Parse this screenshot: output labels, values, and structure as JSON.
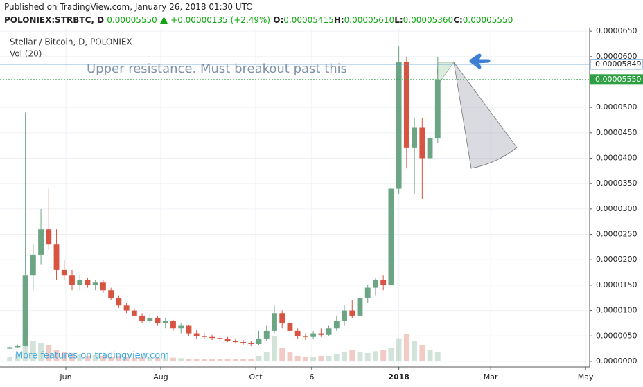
{
  "header": {
    "published": "Published on TradingView.com, January 26, 2018 01:30 UTC",
    "symbol": "POLONIEX:STRBTC, D",
    "price": "0.00005550",
    "change": "+0.00000135 (+2.49%)",
    "ohlc": [
      {
        "label": "O:",
        "value": "0.00005415"
      },
      {
        "label": "H:",
        "value": "0.00005610"
      },
      {
        "label": "L:",
        "value": "0.00005360"
      },
      {
        "label": "C:",
        "value": "0.00005550"
      }
    ]
  },
  "chart_data": {
    "type": "candlestick",
    "legend": "Stellar / Bitcoin, D, POLONIEX",
    "volume_label": "Vol (20)",
    "annotation": "Upper resistance. Must breakout past this",
    "watermark": "More features on tradingview.com",
    "up_color": "#6ba583",
    "down_color": "#d75442",
    "x": [
      -36,
      -31,
      -26,
      -21,
      -16,
      -11,
      -6,
      -1,
      4,
      9,
      14,
      19,
      24,
      29,
      34,
      39,
      44,
      49,
      54,
      59,
      64,
      69,
      74,
      79,
      84,
      89,
      94,
      99,
      104,
      109,
      114,
      119,
      124,
      129,
      134,
      139,
      144,
      149,
      154,
      159,
      164,
      169,
      174,
      179,
      184,
      189,
      194,
      199,
      204,
      209,
      214,
      219,
      224,
      229,
      234,
      239
    ],
    "open": [
      2.5e-06,
      2.8e-06,
      3e-06,
      1.7e-05,
      2.1e-05,
      2.6e-05,
      2.3e-05,
      1.8e-05,
      1.7e-05,
      1.5e-05,
      1.6e-05,
      1.5e-05,
      1.55e-05,
      1.4e-05,
      1.25e-05,
      1.1e-05,
      1e-05,
      9e-06,
      8e-06,
      8.5e-06,
      7.5e-06,
      8e-06,
      6.5e-06,
      7e-06,
      5.5e-06,
      5e-06,
      4.8e-06,
      4.6e-06,
      4.5e-06,
      4e-06,
      3.8e-06,
      3.6e-06,
      3.4e-06,
      4.5e-06,
      6e-06,
      9.5e-06,
      7.5e-06,
      6e-06,
      5e-06,
      4.8e-06,
      5.5e-06,
      5.2e-06,
      6.5e-06,
      8e-06,
      1e-05,
      9e-06,
      1.25e-05,
      1.45e-05,
      1.6e-05,
      1.5e-05,
      3.4e-05,
      5.9e-05,
      4.2e-05,
      4.6e-05,
      4e-05,
      4.4e-05
    ],
    "high": [
      2.9e-06,
      3.3e-06,
      4.9e-05,
      2.3e-05,
      3e-05,
      3.4e-05,
      2.6e-05,
      2e-05,
      1.8e-05,
      1.7e-05,
      1.65e-05,
      1.6e-05,
      1.6e-05,
      1.45e-05,
      1.3e-05,
      1.15e-05,
      1.05e-05,
      9.5e-06,
      9.5e-06,
      9e-06,
      8.5e-06,
      8.2e-06,
      7.5e-06,
      7.2e-06,
      6.2e-06,
      5.6e-06,
      5.2e-06,
      5e-06,
      4.8e-06,
      4.5e-06,
      4.2e-06,
      4e-06,
      6e-06,
      7e-06,
      1.1e-05,
      1e-05,
      8e-06,
      6.5e-06,
      5.5e-06,
      6e-06,
      6.5e-06,
      7e-06,
      9e-06,
      1.1e-05,
      1.2e-05,
      1.3e-05,
      1.5e-05,
      1.65e-05,
      1.7e-05,
      3.5e-05,
      6.2e-05,
      6e-05,
      4.8e-05,
      4.8e-05,
      4.5e-05,
      6e-05
    ],
    "low": [
      2.4e-06,
      2.6e-06,
      2.9e-06,
      1.4e-05,
      1.9e-05,
      2.2e-05,
      1.6e-05,
      1.6e-05,
      1.4e-05,
      1.4e-05,
      1.45e-05,
      1.4e-05,
      1.35e-05,
      1.2e-05,
      1.05e-05,
      9.5e-06,
      8.8e-06,
      7.5e-06,
      7.5e-06,
      7e-06,
      6.5e-06,
      6e-06,
      5.5e-06,
      5e-06,
      4.5e-06,
      4.5e-06,
      4.2e-06,
      4e-06,
      3.8e-06,
      3.5e-06,
      3.3e-06,
      3e-06,
      3.2e-06,
      4e-06,
      5.5e-06,
      6.5e-06,
      5.5e-06,
      4.5e-06,
      4.2e-06,
      4.5e-06,
      4.8e-06,
      5e-06,
      6e-06,
      7e-06,
      8.5e-06,
      8.8e-06,
      1.15e-05,
      1.3e-05,
      1.4e-05,
      1.45e-05,
      3.3e-05,
      3.8e-05,
      3.3e-05,
      3.2e-05,
      3.8e-05,
      4.3e-05
    ],
    "close": [
      2.8e-06,
      3e-06,
      1.7e-05,
      2.1e-05,
      2.6e-05,
      2.3e-05,
      1.8e-05,
      1.7e-05,
      1.5e-05,
      1.6e-05,
      1.5e-05,
      1.55e-05,
      1.4e-05,
      1.25e-05,
      1.1e-05,
      1e-05,
      9e-06,
      8e-06,
      8.5e-06,
      7.5e-06,
      8e-06,
      6.5e-06,
      7e-06,
      5.5e-06,
      5e-06,
      4.8e-06,
      4.6e-06,
      4.5e-06,
      4e-06,
      3.8e-06,
      3.6e-06,
      3.4e-06,
      4.5e-06,
      6e-06,
      9.5e-06,
      7.5e-06,
      6e-06,
      5e-06,
      4.8e-06,
      5.5e-06,
      5.2e-06,
      6.5e-06,
      8e-06,
      1e-05,
      9e-06,
      1.25e-05,
      1.45e-05,
      1.6e-05,
      1.5e-05,
      3.4e-05,
      5.9e-05,
      4.2e-05,
      4.6e-05,
      4e-05,
      4.4e-05,
      5.55e-05
    ],
    "volume": [
      10,
      15,
      60,
      45,
      40,
      35,
      25,
      20,
      18,
      15,
      12,
      14,
      12,
      10,
      12,
      10,
      8,
      9,
      8,
      8,
      7,
      8,
      7,
      6,
      6,
      5,
      5,
      5,
      5,
      5,
      5,
      5,
      12,
      20,
      55,
      30,
      20,
      12,
      10,
      10,
      12,
      12,
      15,
      20,
      25,
      20,
      18,
      22,
      25,
      30,
      50,
      60,
      45,
      35,
      25,
      20
    ],
    "xlim": [
      -42.3,
      336.6
    ],
    "xticks": [
      {
        "value": 0,
        "label": "Jun"
      },
      {
        "value": 61,
        "label": "Aug"
      },
      {
        "value": 122,
        "label": "Oct"
      },
      {
        "value": 158,
        "label": "6"
      },
      {
        "value": 214,
        "label": "2018"
      },
      {
        "value": 273,
        "label": "Mar"
      },
      {
        "value": 334,
        "label": "May"
      }
    ],
    "ylim": [
      -1.1e-06,
      6.57e-05
    ],
    "yticks": [
      {
        "value": 6.5e-05,
        "label": "0.0000650"
      },
      {
        "value": 6e-05,
        "label": "0.0000600"
      },
      {
        "value": 5.5e-05,
        "label": "0.0000550"
      },
      {
        "value": 5e-05,
        "label": "0.0000500"
      },
      {
        "value": 4.5e-05,
        "label": "0.0000450"
      },
      {
        "value": 4e-05,
        "label": "0.0000400"
      },
      {
        "value": 3.5e-05,
        "label": "0.0000350"
      },
      {
        "value": 3e-05,
        "label": "0.0000300"
      },
      {
        "value": 2.5e-05,
        "label": "0.0000250"
      },
      {
        "value": 2e-05,
        "label": "0.0000200"
      },
      {
        "value": 1.5e-05,
        "label": "0.0000150"
      },
      {
        "value": 1e-05,
        "label": "0.0000100"
      },
      {
        "value": 5e-06,
        "label": "0.0000050"
      },
      {
        "value": 0,
        "label": "0.0000000"
      }
    ],
    "grid": true,
    "resistance": {
      "value": 5.849e-05,
      "label": "0.00005849",
      "color": "#5b9bd5"
    },
    "last_price": {
      "value": 5.55e-05,
      "label": "0.00005550",
      "color": "#2ea043"
    }
  }
}
